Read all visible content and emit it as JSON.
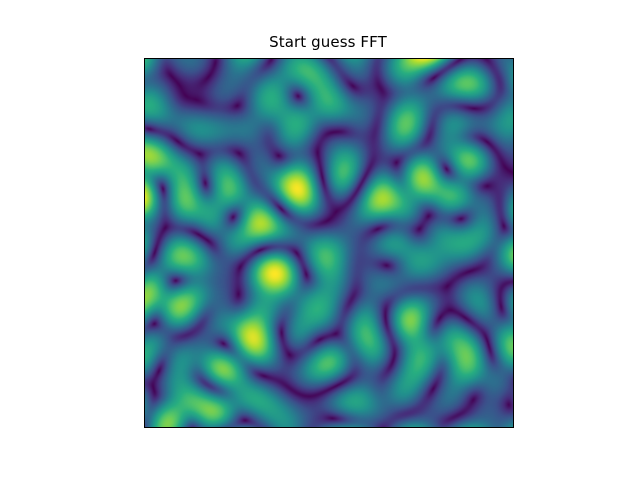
{
  "chart_data": {
    "type": "heatmap",
    "title": "Start guess FFT",
    "xlabel": "",
    "ylabel": "",
    "colormap": "viridis",
    "axes_visible": false,
    "grid": false,
    "legend": "none",
    "value_range": [
      0,
      1
    ]
  }
}
